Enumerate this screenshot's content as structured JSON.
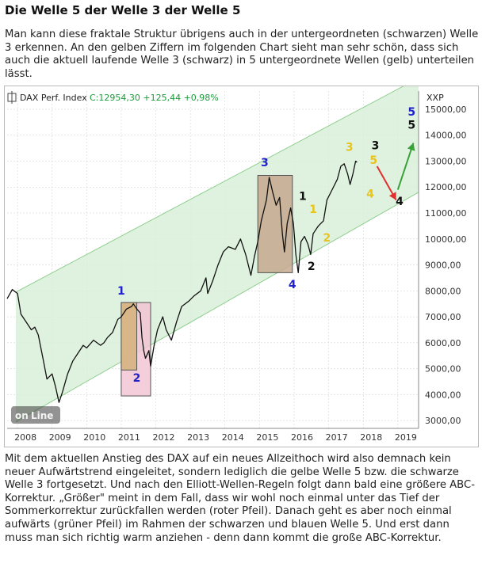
{
  "article": {
    "title": "Die Welle 5 der Welle 3 der Welle 5",
    "intro": "Man kann diese fraktale Struktur übrigens auch in der untergeordneten (schwarzen) Welle 3 erkennen. An den gelben Ziffern im folgenden Chart sieht man sehr schön, dass sich auch die aktuell laufende Welle 3 (schwarz) in 5 untergeordnete Wellen (gelb) unterteilen lässt.",
    "conclusion": "Mit dem aktuellen Anstieg des DAX auf ein neues Allzeithoch wird also demnach kein neuer Aufwärtstrend eingeleitet, sondern lediglich die gelbe Welle 5 bzw. die schwarze Welle 3 fortgesetzt. Und nach den Elliott-Wellen-Regeln folgt dann bald eine größere ABC-Korrektur. „Größer\" meint in dem Fall, dass wir wohl noch einmal unter das Tief der Sommerkorrektur zurückfallen werden (roter Pfeil). Danach geht es aber noch einmal aufwärts (grüner Pfeil) im Rahmen der schwarzen und blauen Welle 5. Und erst dann muss man sich richtig warm anziehen - denn dann kommt die große ABC-Korrektur."
  },
  "chart_data": {
    "type": "line",
    "title": "DAX Perf. Index",
    "quote": "C:12954,30 +125,44 +0,98%",
    "axis_code": "XXP",
    "x_tick_labels": [
      "2008",
      "2009",
      "2010",
      "2011",
      "2012",
      "2013",
      "2014",
      "2015",
      "2016",
      "2017",
      "2018",
      "2019"
    ],
    "y_tick_labels": [
      "3000,00",
      "4000,00",
      "5000,00",
      "6000,00",
      "7000,00",
      "8000,00",
      "9000,00",
      "10000,00",
      "11000,00",
      "12000,00",
      "13000,00",
      "14000,00",
      "15000,00"
    ],
    "ylim": [
      2700,
      15700
    ],
    "xlim": [
      2007.7,
      2019.6
    ],
    "grid": true,
    "series": [
      {
        "values": [
          [
            2007.7,
            7700
          ],
          [
            2007.85,
            8050
          ],
          [
            2008.0,
            7900
          ],
          [
            2008.1,
            7100
          ],
          [
            2008.25,
            6800
          ],
          [
            2008.4,
            6500
          ],
          [
            2008.5,
            6600
          ],
          [
            2008.6,
            6300
          ],
          [
            2008.75,
            5300
          ],
          [
            2008.85,
            4600
          ],
          [
            2009.0,
            4800
          ],
          [
            2009.1,
            4300
          ],
          [
            2009.2,
            3700
          ],
          [
            2009.3,
            4100
          ],
          [
            2009.45,
            4800
          ],
          [
            2009.6,
            5300
          ],
          [
            2009.75,
            5600
          ],
          [
            2009.9,
            5900
          ],
          [
            2010.0,
            5800
          ],
          [
            2010.2,
            6100
          ],
          [
            2010.4,
            5900
          ],
          [
            2010.5,
            6000
          ],
          [
            2010.6,
            6200
          ],
          [
            2010.75,
            6400
          ],
          [
            2010.9,
            6900
          ],
          [
            2011.0,
            7000
          ],
          [
            2011.15,
            7300
          ],
          [
            2011.3,
            7400
          ],
          [
            2011.35,
            7500
          ],
          [
            2011.45,
            7300
          ],
          [
            2011.55,
            7150
          ],
          [
            2011.6,
            6200
          ],
          [
            2011.65,
            5700
          ],
          [
            2011.7,
            5400
          ],
          [
            2011.8,
            5700
          ],
          [
            2011.85,
            5100
          ],
          [
            2011.95,
            5900
          ],
          [
            2012.05,
            6500
          ],
          [
            2012.2,
            7000
          ],
          [
            2012.3,
            6500
          ],
          [
            2012.45,
            6100
          ],
          [
            2012.6,
            6800
          ],
          [
            2012.75,
            7400
          ],
          [
            2012.95,
            7600
          ],
          [
            2013.1,
            7800
          ],
          [
            2013.3,
            8000
          ],
          [
            2013.45,
            8500
          ],
          [
            2013.5,
            7900
          ],
          [
            2013.65,
            8400
          ],
          [
            2013.8,
            9000
          ],
          [
            2013.95,
            9500
          ],
          [
            2014.1,
            9700
          ],
          [
            2014.3,
            9600
          ],
          [
            2014.45,
            10000
          ],
          [
            2014.6,
            9400
          ],
          [
            2014.75,
            8600
          ],
          [
            2014.85,
            9300
          ],
          [
            2014.95,
            9900
          ],
          [
            2015.05,
            10700
          ],
          [
            2015.2,
            11500
          ],
          [
            2015.28,
            12374
          ],
          [
            2015.38,
            11800
          ],
          [
            2015.48,
            11300
          ],
          [
            2015.58,
            11600
          ],
          [
            2015.66,
            10200
          ],
          [
            2015.72,
            9500
          ],
          [
            2015.8,
            10600
          ],
          [
            2015.9,
            11200
          ],
          [
            2015.98,
            10600
          ],
          [
            2016.05,
            9400
          ],
          [
            2016.12,
            8700
          ],
          [
            2016.2,
            9900
          ],
          [
            2016.3,
            10100
          ],
          [
            2016.4,
            9800
          ],
          [
            2016.48,
            9400
          ],
          [
            2016.55,
            10200
          ],
          [
            2016.7,
            10500
          ],
          [
            2016.85,
            10700
          ],
          [
            2016.95,
            11500
          ],
          [
            2017.1,
            11900
          ],
          [
            2017.25,
            12300
          ],
          [
            2017.35,
            12800
          ],
          [
            2017.45,
            12900
          ],
          [
            2017.55,
            12500
          ],
          [
            2017.62,
            12100
          ],
          [
            2017.7,
            12500
          ],
          [
            2017.78,
            13000
          ],
          [
            2017.82,
            12954
          ]
        ]
      }
    ],
    "channel": {
      "upper": [
        [
          2007.95,
          7950
        ],
        [
          2019.6,
          16200
        ]
      ],
      "lower": [
        [
          2007.95,
          2950
        ],
        [
          2019.6,
          11800
        ]
      ]
    },
    "boxes": [
      {
        "x0": 2011.0,
        "x1": 2011.45,
        "y0": 4950,
        "y1": 7550,
        "fill": "#d4b27a"
      },
      {
        "x0": 2011.0,
        "x1": 2011.85,
        "y0": 3950,
        "y1": 7550,
        "fill": "#f2c6d4"
      },
      {
        "x0": 2014.95,
        "x1": 2015.95,
        "y0": 8700,
        "y1": 12450,
        "fill": "#c6a98f"
      }
    ],
    "wave_labels": [
      {
        "text": "1",
        "color": "#2222cc",
        "x": 2011.0,
        "y": 7850
      },
      {
        "text": "2",
        "color": "#2222cc",
        "x": 2011.45,
        "y": 4500
      },
      {
        "text": "3",
        "color": "#2222cc",
        "x": 2015.15,
        "y": 12800
      },
      {
        "text": "4",
        "color": "#2222cc",
        "x": 2015.95,
        "y": 8100
      },
      {
        "text": "5",
        "color": "#2222cc",
        "x": 2019.4,
        "y": 14750
      },
      {
        "text": "1",
        "color": "#e8c41a",
        "x": 2016.55,
        "y": 11000
      },
      {
        "text": "2",
        "color": "#e8c41a",
        "x": 2016.95,
        "y": 9900
      },
      {
        "text": "3",
        "color": "#e8c41a",
        "x": 2017.6,
        "y": 13400
      },
      {
        "text": "4",
        "color": "#e8c41a",
        "x": 2018.2,
        "y": 11600
      },
      {
        "text": "5",
        "color": "#e8c41a",
        "x": 2018.3,
        "y": 12900
      },
      {
        "text": "1",
        "color": "#111111",
        "x": 2016.25,
        "y": 11500
      },
      {
        "text": "2",
        "color": "#111111",
        "x": 2016.5,
        "y": 8800
      },
      {
        "text": "3",
        "color": "#111111",
        "x": 2018.35,
        "y": 13450
      },
      {
        "text": "4",
        "color": "#111111",
        "x": 2019.05,
        "y": 11300
      },
      {
        "text": "5",
        "color": "#111111",
        "x": 2019.4,
        "y": 14250
      }
    ],
    "arrows": [
      {
        "color": "#e03030",
        "from": [
          2018.4,
          12800
        ],
        "to": [
          2018.95,
          11500
        ]
      },
      {
        "color": "#3aa03a",
        "from": [
          2019.0,
          11900
        ],
        "to": [
          2019.45,
          13700
        ]
      }
    ]
  },
  "colors": {
    "channel_fill": "#d7efd7",
    "channel_line": "#8fcf8f",
    "price": "#111111",
    "grid": "#cfcfcf"
  }
}
